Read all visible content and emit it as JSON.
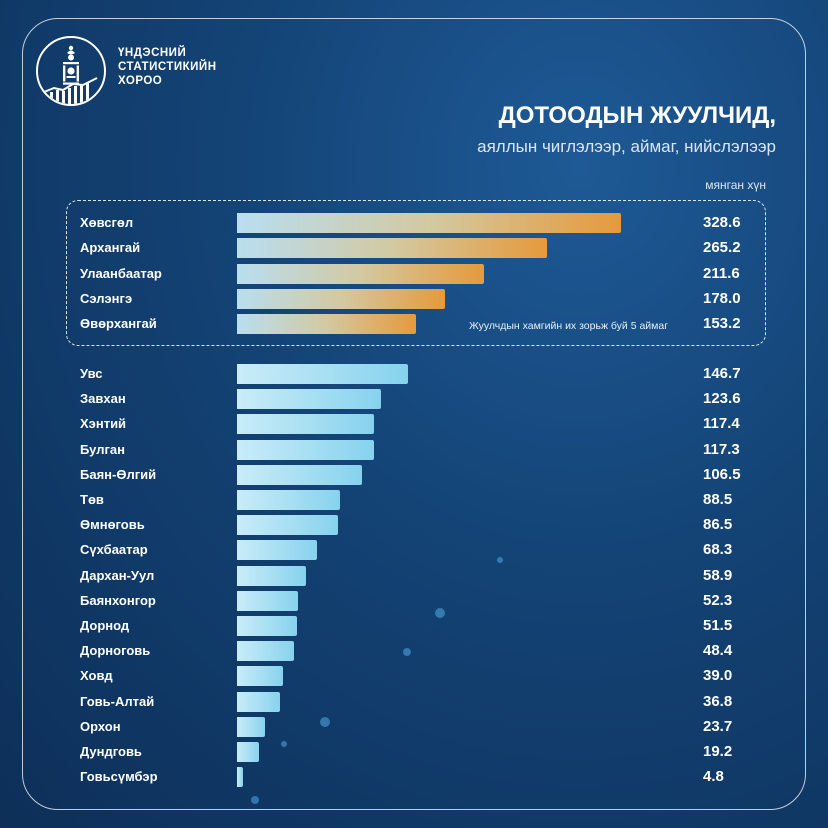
{
  "header": {
    "org_name": [
      "ҮНДЭСНИЙ",
      "СТАТИСТИКИЙН",
      "ХОРОО"
    ],
    "title": "ДОТООДЫН ЖУУЛЧИД,",
    "subtitle": "аяллын чиглэлээр, аймаг, нийслэлээр",
    "unit": "мянган хүн"
  },
  "top_box": {
    "note": "Жуулчдын хамгийн их зорьж буй 5 аймаг"
  },
  "colors": {
    "background": "#134274",
    "top_bar_start": "#b9def0",
    "top_bar_end": "#e59a3c",
    "rest_bar_start": "#c9ecf8",
    "rest_bar_end": "#86d2ee"
  },
  "chart_data": {
    "type": "bar",
    "orientation": "horizontal",
    "title": "ДОТООДЫН ЖУУЛЧИД,",
    "subtitle": "аяллын чиглэлээр, аймаг, нийслэлээр",
    "unit": "мянган хүн",
    "categories": [
      "Хөвсгөл",
      "Архангай",
      "Улаанбаатар",
      "Сэлэнгэ",
      "Өвөрхангай",
      "Увс",
      "Завхан",
      "Хэнтий",
      "Булган",
      "Баян-Өлгий",
      "Төв",
      "Өмнөговь",
      "Сүхбаатар",
      "Дархан-Уул",
      "Баянхонгор",
      "Дорнод",
      "Дорноговь",
      "Ховд",
      "Говь-Алтай",
      "Орхон",
      "Дундговь",
      "Говьсүмбэр"
    ],
    "values": [
      328.6,
      265.2,
      211.6,
      178.0,
      153.2,
      146.7,
      123.6,
      117.4,
      117.3,
      106.5,
      88.5,
      86.5,
      68.3,
      58.9,
      52.3,
      51.5,
      48.4,
      39.0,
      36.8,
      23.7,
      19.2,
      4.8
    ],
    "value_labels": [
      "328.6",
      "265.2",
      "211.6",
      "178.0",
      "153.2",
      "146.7",
      "123.6",
      "117.4",
      "117.3",
      "106.5",
      "88.5",
      "86.5",
      "68.3",
      "58.9",
      "52.3",
      "51.5",
      "48.4",
      "39.0",
      "36.8",
      "23.7",
      "19.2",
      "4.8"
    ],
    "highlighted_count": 5,
    "xlim": [
      0,
      328.6
    ],
    "grid": false,
    "legend": "none"
  }
}
